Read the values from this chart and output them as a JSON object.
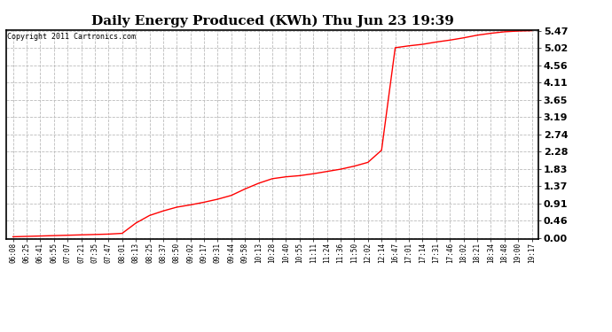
{
  "title": "Daily Energy Produced (KWh) Thu Jun 23 19:39",
  "copyright_text": "Copyright 2011 Cartronics.com",
  "line_color": "#ff0000",
  "background_color": "#ffffff",
  "grid_color": "#bbbbbb",
  "yticks": [
    0.0,
    0.46,
    0.91,
    1.37,
    1.83,
    2.28,
    2.74,
    3.19,
    3.65,
    4.11,
    4.56,
    5.02,
    5.47
  ],
  "xtick_labels": [
    "06:08",
    "06:25",
    "06:41",
    "06:55",
    "07:07",
    "07:21",
    "07:35",
    "07:47",
    "08:01",
    "08:13",
    "08:25",
    "08:37",
    "08:50",
    "09:02",
    "09:17",
    "09:31",
    "09:44",
    "09:58",
    "10:13",
    "10:28",
    "10:40",
    "10:55",
    "11:11",
    "11:24",
    "11:36",
    "11:50",
    "12:02",
    "12:14",
    "16:47",
    "17:01",
    "17:14",
    "17:31",
    "17:46",
    "18:02",
    "18:21",
    "18:34",
    "18:48",
    "19:00",
    "19:17"
  ],
  "ymin": 0.0,
  "ymax": 5.47,
  "title_fontsize": 11,
  "ytick_fontsize": 8,
  "xtick_fontsize": 5.5,
  "copyright_fontsize": 6,
  "data_y_values": [
    0.04,
    0.05,
    0.06,
    0.07,
    0.08,
    0.09,
    0.1,
    0.11,
    0.13,
    0.4,
    0.6,
    0.72,
    0.82,
    0.88,
    0.95,
    1.03,
    1.13,
    1.3,
    1.45,
    1.57,
    1.62,
    1.65,
    1.7,
    1.76,
    1.82,
    1.9,
    2.0,
    2.32,
    5.02,
    5.07,
    5.11,
    5.17,
    5.22,
    5.28,
    5.35,
    5.4,
    5.44,
    5.46,
    5.47
  ]
}
